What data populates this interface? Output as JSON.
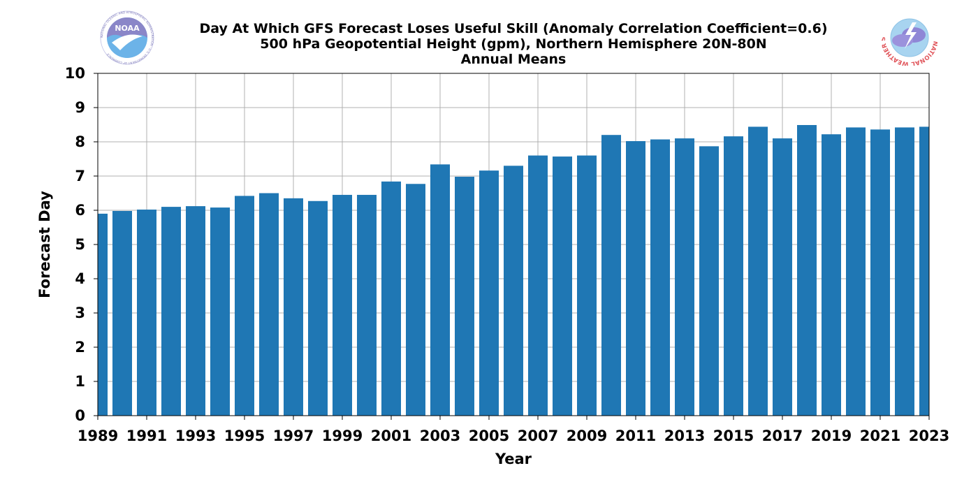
{
  "header": {
    "title_lines": [
      "Day At Which GFS Forecast Loses Useful Skill (Anomaly Correlation Coefficient=0.6)",
      "500 hPa Geopotential Height (gpm), Northern Hemisphere 20N-80N",
      "Annual Means"
    ],
    "left_logo": {
      "text": "NOAA",
      "ring_text": "NATIONAL OCEANIC AND ATMOSPHERIC ADMINISTRATION · U.S. DEPARTMENT OF COMMERCE"
    },
    "right_logo": {
      "ring_text": "NATIONAL WEATHER SERVICE"
    }
  },
  "colors": {
    "bar": "#1f77b4",
    "grid": "#b0b0b0",
    "noaa_blue": "#6cb3e8",
    "noaa_purple": "#8a86c8",
    "nws_red": "#e0555b"
  },
  "chart_data": {
    "type": "bar",
    "title": "Day At Which GFS Forecast Loses Useful Skill (Anomaly Correlation Coefficient=0.6)",
    "subtitle": [
      "500 hPa Geopotential Height (gpm), Northern Hemisphere 20N-80N",
      "Annual Means"
    ],
    "xlabel": "Year",
    "ylabel": "Forecast Day",
    "x": [
      1989,
      1990,
      1991,
      1992,
      1993,
      1994,
      1995,
      1996,
      1997,
      1998,
      1999,
      2000,
      2001,
      2002,
      2003,
      2004,
      2005,
      2006,
      2007,
      2008,
      2009,
      2010,
      2011,
      2012,
      2013,
      2014,
      2015,
      2016,
      2017,
      2018,
      2019,
      2020,
      2021,
      2022,
      2023
    ],
    "values": [
      5.9,
      5.98,
      6.02,
      6.1,
      6.12,
      6.08,
      6.42,
      6.5,
      6.35,
      6.27,
      6.45,
      6.45,
      6.84,
      6.77,
      7.34,
      6.98,
      7.16,
      7.3,
      7.6,
      7.57,
      7.6,
      8.2,
      8.02,
      8.07,
      8.1,
      7.87,
      8.16,
      8.44,
      8.1,
      8.49,
      8.22,
      8.42,
      8.36,
      8.42,
      8.44
    ],
    "xlim": [
      1989,
      2023
    ],
    "ylim": [
      0,
      10
    ],
    "xticks": [
      "1989",
      "1991",
      "1993",
      "1995",
      "1997",
      "1999",
      "2001",
      "2003",
      "2005",
      "2007",
      "2009",
      "2011",
      "2013",
      "2015",
      "2017",
      "2019",
      "2021",
      "2023"
    ],
    "yticks": [
      "0",
      "1",
      "2",
      "3",
      "4",
      "5",
      "6",
      "7",
      "8",
      "9",
      "10"
    ],
    "grid": true
  }
}
